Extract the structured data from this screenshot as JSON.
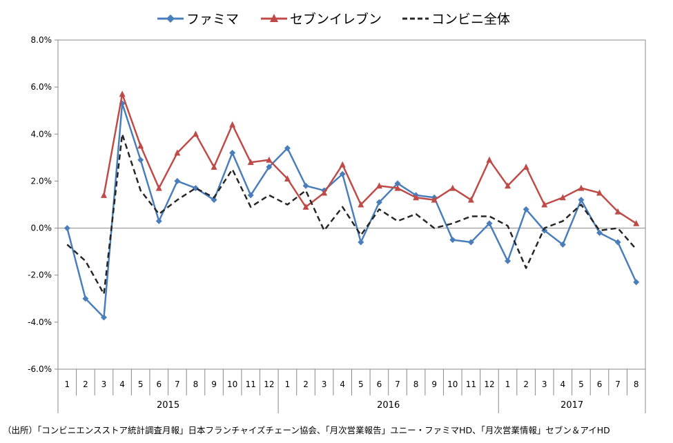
{
  "legend": {
    "famima": "ファミマ",
    "seven": "セブンイレブン",
    "total": "コンビニ全体"
  },
  "source": "（出所）「コンビニエンスストア統計調査月報」日本フランチャイズチェーン協会、「月次営業報告」ユニー・ファミマHD、「月次営業情報」セブン＆アイHD",
  "chart_data": {
    "type": "line",
    "categories": [
      "1",
      "2",
      "3",
      "4",
      "5",
      "6",
      "7",
      "8",
      "9",
      "10",
      "11",
      "12",
      "1",
      "2",
      "3",
      "4",
      "5",
      "6",
      "7",
      "8",
      "9",
      "10",
      "11",
      "12",
      "1",
      "2",
      "3",
      "4",
      "5",
      "6",
      "7",
      "8"
    ],
    "year_groups": [
      {
        "label": "2015",
        "span": 12
      },
      {
        "label": "2016",
        "span": 12
      },
      {
        "label": "2017",
        "span": 8
      }
    ],
    "ylim": [
      -6.0,
      8.0
    ],
    "yticks": [
      -6.0,
      -4.0,
      -2.0,
      0.0,
      2.0,
      4.0,
      6.0,
      8.0
    ],
    "ytick_labels": [
      "-6.0%",
      "-4.0%",
      "-2.0%",
      "0.0%",
      "2.0%",
      "4.0%",
      "6.0%",
      "8.0%"
    ],
    "legend_position": "top-center",
    "grid": false,
    "series": [
      {
        "name": "ファミマ",
        "color": "#4a7ebb",
        "marker": "diamond",
        "dash": "solid",
        "values": [
          0.0,
          -3.0,
          -3.8,
          5.3,
          2.9,
          0.3,
          2.0,
          1.7,
          1.2,
          3.2,
          1.4,
          2.6,
          3.4,
          1.8,
          1.6,
          2.3,
          -0.6,
          1.1,
          1.9,
          1.4,
          1.3,
          -0.5,
          -0.6,
          0.2,
          -1.4,
          0.8,
          -0.1,
          -0.7,
          1.2,
          -0.2,
          -0.6,
          -2.3
        ]
      },
      {
        "name": "セブンイレブン",
        "color": "#be4b48",
        "marker": "triangle",
        "dash": "solid",
        "values": [
          null,
          null,
          1.4,
          5.7,
          3.5,
          1.7,
          3.2,
          4.0,
          2.6,
          4.4,
          2.8,
          2.9,
          2.1,
          0.9,
          1.5,
          2.7,
          1.0,
          1.8,
          1.7,
          1.3,
          1.2,
          1.7,
          1.2,
          2.9,
          1.8,
          2.6,
          1.0,
          1.3,
          1.7,
          1.5,
          0.7,
          0.2
        ]
      },
      {
        "name": "コンビニ全体",
        "color": "#262626",
        "marker": "none",
        "dash": "dashed",
        "values": [
          -0.7,
          -1.4,
          -2.8,
          4.0,
          1.6,
          0.6,
          1.2,
          1.7,
          1.3,
          2.5,
          0.9,
          1.4,
          1.0,
          1.6,
          -0.1,
          0.9,
          -0.3,
          0.8,
          0.3,
          0.6,
          0.0,
          0.2,
          0.5,
          0.5,
          0.1,
          -1.7,
          0.0,
          0.3,
          1.0,
          -0.1,
          0.0,
          -0.9
        ]
      }
    ]
  }
}
